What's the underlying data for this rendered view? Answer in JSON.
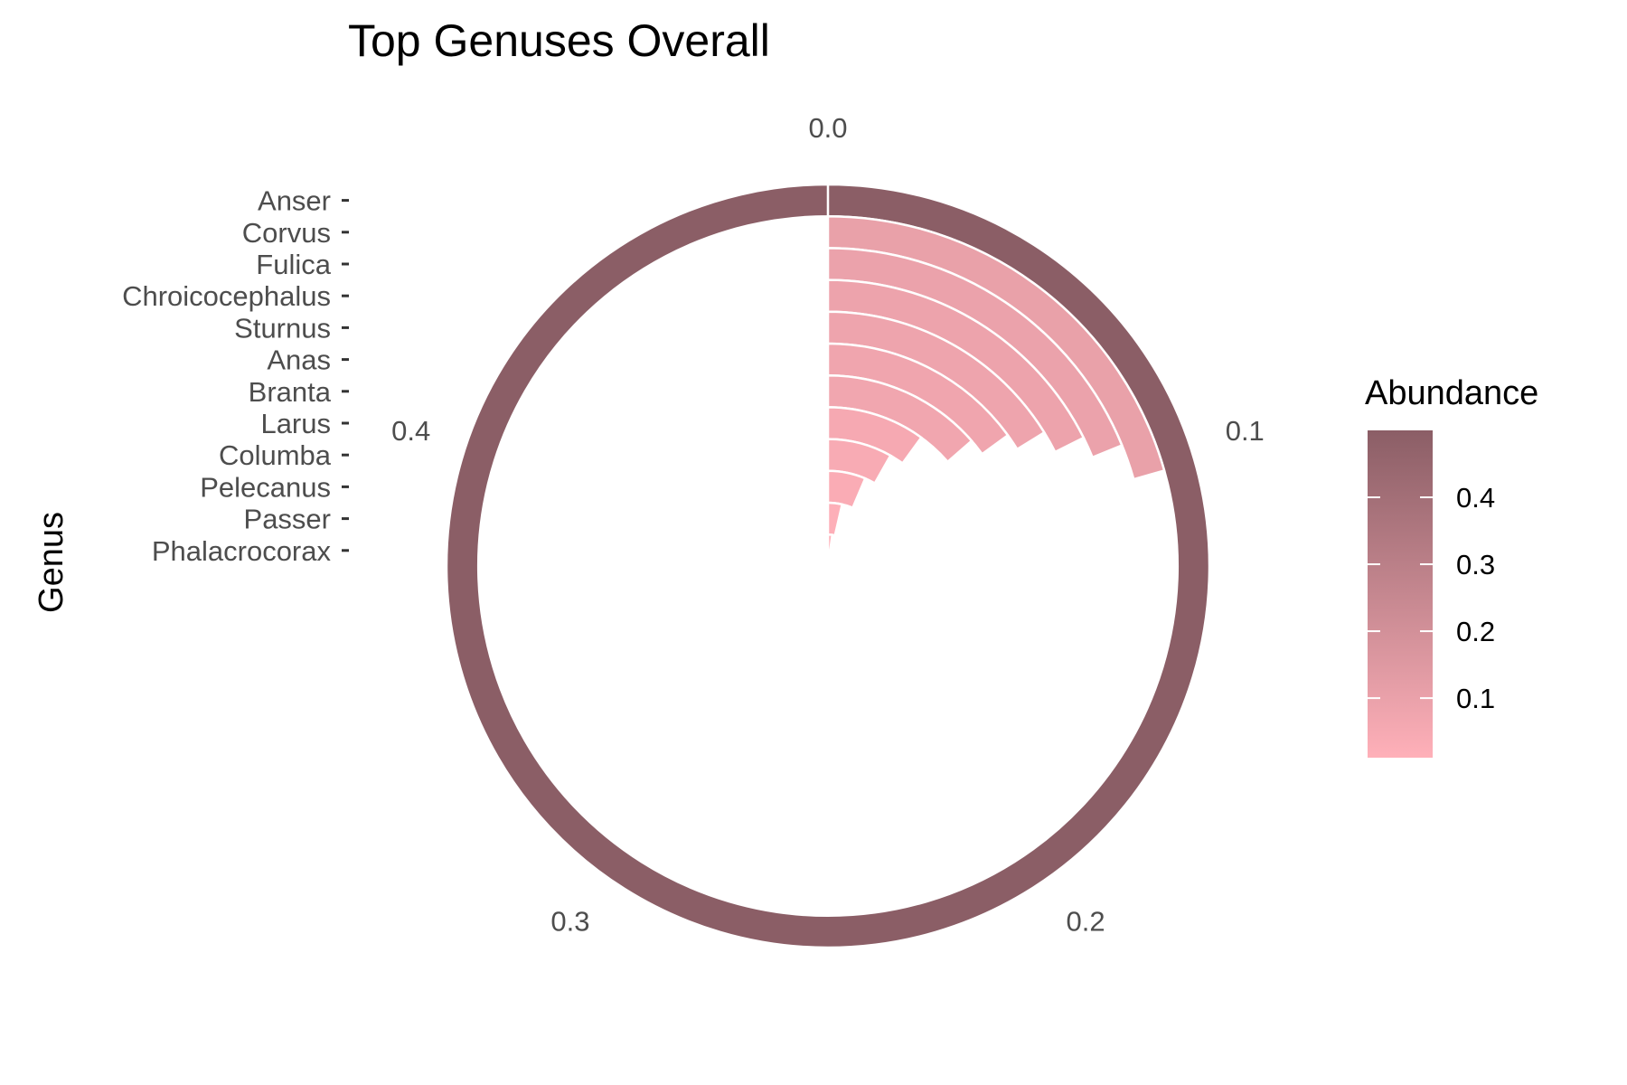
{
  "chart_data": {
    "type": "bar",
    "coord": "polar",
    "title": "Top Genuses Overall",
    "xlabel": "Genus",
    "ylabel": "",
    "categories": [
      "Anser",
      "Corvus",
      "Fulica",
      "Chroicocephalus",
      "Sturnus",
      "Anas",
      "Branta",
      "Larus",
      "Columba",
      "Pelecanus",
      "Passer",
      "Phalacrocorax"
    ],
    "values": [
      0.5,
      0.103,
      0.094,
      0.088,
      0.081,
      0.075,
      0.068,
      0.05,
      0.041,
      0.032,
      0.018,
      0.011
    ],
    "angle_ticks": [
      "0.0",
      "0.1",
      "0.2",
      "0.3",
      "0.4"
    ],
    "angle_tick_values": [
      0.0,
      0.1,
      0.2,
      0.3,
      0.4
    ],
    "angle_max": 0.5,
    "legend": {
      "title": "Abundance",
      "labels": [
        "0.4",
        "0.3",
        "0.2",
        "0.1"
      ],
      "values": [
        0.4,
        0.3,
        0.2,
        0.1
      ],
      "range": [
        0.011,
        0.5
      ],
      "placement": "right"
    },
    "colors": {
      "low": "#ffb0b9",
      "high": "#8b5e66",
      "separator": "#ffffff"
    },
    "grid": false
  }
}
